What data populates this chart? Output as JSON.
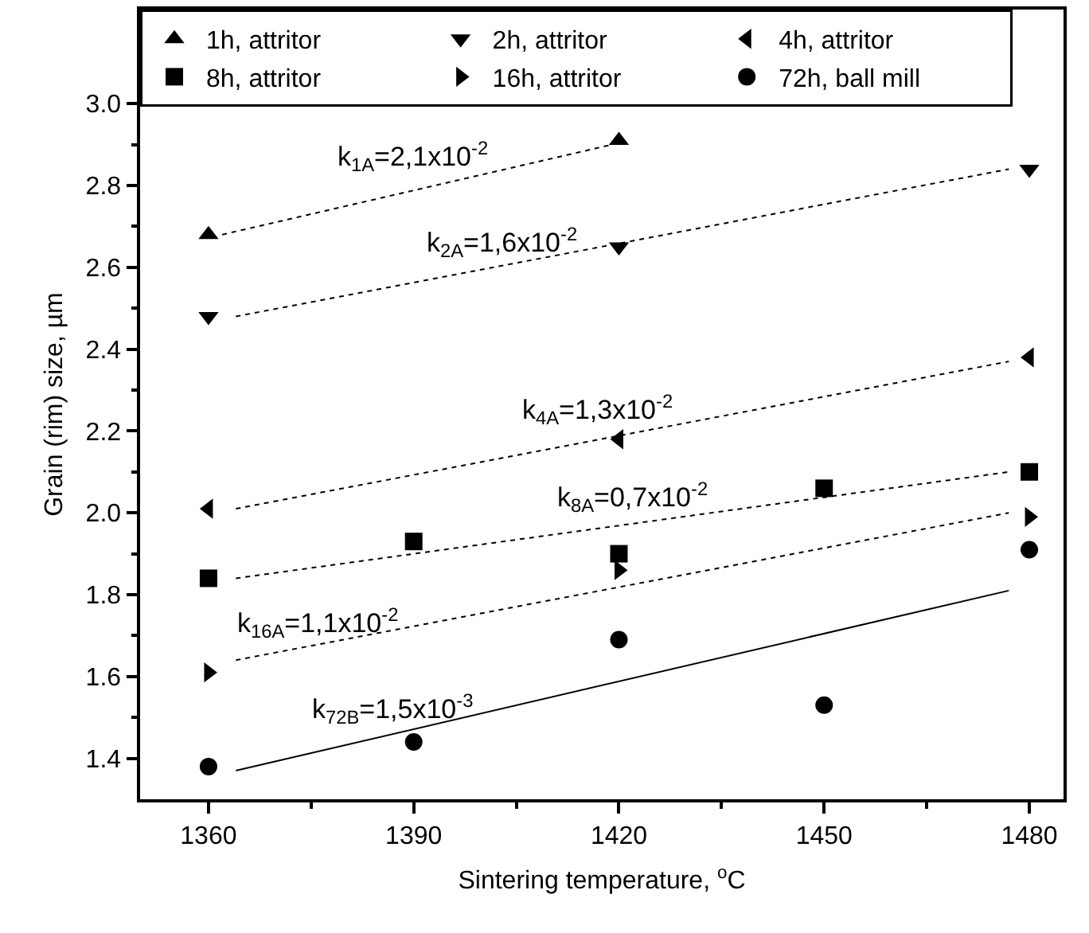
{
  "chart_data": {
    "type": "scatter",
    "xlabel": "Sintering temperature, $^{o}$C",
    "ylabel": "Grain (rim) size, µm",
    "xlim": [
      1350,
      1485
    ],
    "ylim": [
      1.3,
      3.23
    ],
    "xticks": [
      1360,
      {
        "value": 1375,
        "label": null
      },
      1390,
      {
        "value": 1405,
        "label": null
      },
      1420,
      {
        "value": 1435,
        "label": null
      },
      1450,
      {
        "value": 1465,
        "label": null
      },
      1480
    ],
    "yticks": [
      1.4,
      {
        "value": 1.5,
        "label": null
      },
      1.6,
      {
        "value": 1.7,
        "label": null
      },
      1.8,
      {
        "value": 1.9,
        "label": null
      },
      {
        "value": 2.0,
        "label": "2.0"
      },
      {
        "value": 2.1,
        "label": null
      },
      2.2,
      {
        "value": 2.3,
        "label": null
      },
      2.4,
      {
        "value": 2.5,
        "label": null
      },
      2.6,
      {
        "value": 2.7,
        "label": null
      },
      2.8,
      {
        "value": 2.9,
        "label": null
      },
      {
        "value": 3.0,
        "label": "3.0"
      }
    ],
    "grid": false,
    "legend": "top",
    "series": [
      {
        "name": "1h, attritor",
        "color": "#000000",
        "marker": "triangle-up",
        "x": [
          1360,
          1420
        ],
        "values": [
          2.68,
          2.91
        ]
      },
      {
        "name": "2h, attritor",
        "color": "#000000",
        "marker": "triangle-down",
        "x": [
          1360,
          1420,
          1480
        ],
        "values": [
          2.48,
          2.65,
          2.84
        ]
      },
      {
        "name": "4h, attritor",
        "color": "#000000",
        "marker": "triangle-left",
        "x": [
          1360,
          1420,
          1480
        ],
        "values": [
          2.01,
          2.18,
          2.38
        ]
      },
      {
        "name": "8h, attritor",
        "color": "#000000",
        "marker": "square",
        "x": [
          1360,
          1390,
          1420,
          1450,
          1480
        ],
        "values": [
          1.84,
          1.93,
          1.9,
          2.06,
          2.1
        ]
      },
      {
        "name": "16h, attritor",
        "color": "#000000",
        "marker": "triangle-right",
        "x": [
          1360,
          1420,
          1480
        ],
        "values": [
          1.61,
          1.86,
          1.99
        ]
      },
      {
        "name": "72h, ball mill",
        "color": "#000000",
        "marker": "circle",
        "x": [
          1360,
          1390,
          1420,
          1450,
          1480
        ],
        "values": [
          1.38,
          1.44,
          1.69,
          1.53,
          1.91
        ]
      },
      {
        "type": "line",
        "color": "#000000",
        "line_style": "dotted",
        "marker": "none",
        "x": [
          1362,
          1419
        ],
        "values": [
          2.68,
          2.9
        ]
      },
      {
        "type": "line",
        "color": "#000000",
        "line_style": "dotted",
        "marker": "none",
        "x": [
          1364,
          1477
        ],
        "values": [
          2.48,
          2.84
        ]
      },
      {
        "type": "line",
        "color": "#000000",
        "line_style": "dotted",
        "marker": "none",
        "x": [
          1364,
          1477
        ],
        "values": [
          2.01,
          2.37
        ]
      },
      {
        "type": "line",
        "color": "#000000",
        "line_style": "dotted",
        "marker": "none",
        "x": [
          1364,
          1477
        ],
        "values": [
          1.84,
          2.1
        ]
      },
      {
        "type": "line",
        "color": "#000000",
        "line_style": "dotted",
        "marker": "none",
        "x": [
          1364,
          1477
        ],
        "values": [
          1.64,
          2.0
        ]
      },
      {
        "type": "line",
        "color": "#000000",
        "line_style": "solid",
        "marker": "none",
        "x": [
          1364,
          1477
        ],
        "values": [
          1.37,
          1.81
        ]
      }
    ],
    "annotations": [
      "k$_{1A}$=2,1x10$^{-2}$",
      "k$_{2A}$=1,6x10$^{-2}$",
      "k$_{4A}$=1,3x10$^{-2}$",
      "k$_{8A}$=0,7x10$^{-2}$",
      "k$_{16A}$=1,1x10$^{-2}$",
      "k$_{72B}$=1,5x10$^{-3}$"
    ]
  }
}
